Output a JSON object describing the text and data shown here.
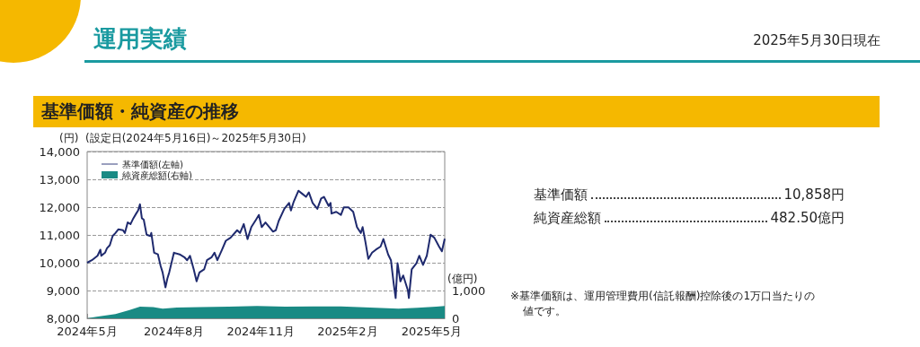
{
  "chart_data": {
    "type": "line",
    "title": "基準価額・純資産の推移",
    "subtitle": "(設定日(2024年5月16日)～2025年5月30日)",
    "ylabel": "(円)",
    "y2label": "(億円)",
    "annotations": [
      "運用実績",
      "2025年5月30日現在",
      "基準価額",
      "10,858円",
      "純資産総額",
      "482.50億円",
      "※基準価額は、運用管理費用(信託報酬)控除後の1万口当たりの値です。"
    ],
    "xlim": [
      "2024-05-16",
      "2025-05-30"
    ],
    "xticks": [
      {
        "value": "2024-05-16",
        "label": "2024年5月"
      },
      {
        "value": "2024-08-16",
        "label": "2024年8月"
      },
      {
        "value": "2024-11-16",
        "label": "2024年11月"
      },
      {
        "value": "2025-02-16",
        "label": "2025年2月"
      },
      {
        "value": "2025-05-16",
        "label": "2025年5月"
      }
    ],
    "ylim": [
      8000,
      14000
    ],
    "yticks": [
      {
        "value": 8000,
        "label": "8,000"
      },
      {
        "value": 9000,
        "label": "9,000"
      },
      {
        "value": 10000,
        "label": "10,000"
      },
      {
        "value": 11000,
        "label": "11,000"
      },
      {
        "value": 12000,
        "label": "12,000"
      },
      {
        "value": 13000,
        "label": "13,000"
      },
      {
        "value": 14000,
        "label": "14,000"
      }
    ],
    "y2lim": [
      0,
      6000
    ],
    "y2ticks": [
      {
        "value": 0,
        "label": "0"
      },
      {
        "value": 1000,
        "label": "1,000"
      }
    ],
    "grid": "y",
    "legend": "top left",
    "marker": "none",
    "line_style": "solid",
    "series": [
      {
        "name": "基準価額(左軸)",
        "color": "#1f2a6e",
        "x": [
          "2024-05-16",
          "2024-05-21",
          "2024-05-27",
          "2024-05-30",
          "2024-05-31",
          "2024-06-04",
          "2024-06-06",
          "2024-06-09",
          "2024-06-12",
          "2024-06-15",
          "2024-06-18",
          "2024-06-23",
          "2024-06-25",
          "2024-06-28",
          "2024-07-01",
          "2024-07-04",
          "2024-07-07",
          "2024-07-09",
          "2024-07-11",
          "2024-07-13",
          "2024-07-15",
          "2024-07-18",
          "2024-07-22",
          "2024-07-23",
          "2024-07-26",
          "2024-07-30",
          "2024-08-02",
          "2024-08-04",
          "2024-08-07",
          "2024-08-09",
          "2024-08-11",
          "2024-08-16",
          "2024-08-22",
          "2024-08-27",
          "2024-08-30",
          "2024-09-02",
          "2024-09-06",
          "2024-09-09",
          "2024-09-12",
          "2024-09-17",
          "2024-09-20",
          "2024-09-25",
          "2024-09-28",
          "2024-10-01",
          "2024-10-06",
          "2024-10-10",
          "2024-10-15",
          "2024-10-22",
          "2024-10-25",
          "2024-10-29",
          "2024-11-02",
          "2024-11-06",
          "2024-11-11",
          "2024-11-14",
          "2024-11-17",
          "2024-11-21",
          "2024-11-29",
          "2024-12-02",
          "2024-12-05",
          "2024-12-11",
          "2024-12-16",
          "2024-12-18",
          "2024-12-21",
          "2024-12-26",
          "2024-12-30",
          "2025-01-03",
          "2025-01-06",
          "2025-01-10",
          "2025-01-15",
          "2025-01-19",
          "2025-01-22",
          "2025-01-27",
          "2025-01-29",
          "2025-01-30",
          "2025-02-04",
          "2025-02-09",
          "2025-02-12",
          "2025-02-17",
          "2025-02-22",
          "2025-02-26",
          "2025-03-02",
          "2025-03-04",
          "2025-03-07",
          "2025-03-10",
          "2025-03-14",
          "2025-03-18",
          "2025-03-23",
          "2025-03-26",
          "2025-03-31",
          "2025-04-03",
          "2025-04-06",
          "2025-04-08",
          "2025-04-10",
          "2025-04-13",
          "2025-04-16",
          "2025-04-21",
          "2025-04-22",
          "2025-04-25",
          "2025-04-30",
          "2025-05-03",
          "2025-05-07",
          "2025-05-11",
          "2025-05-15",
          "2025-05-19",
          "2025-05-24",
          "2025-05-27",
          "2025-05-30"
        ],
        "values": [
          10000,
          10090,
          10250,
          10470,
          10250,
          10360,
          10520,
          10630,
          10960,
          11070,
          11200,
          11170,
          11070,
          11450,
          11390,
          11600,
          11770,
          11880,
          12100,
          11600,
          11550,
          11010,
          10960,
          11070,
          10360,
          10300,
          9870,
          9650,
          9110,
          9430,
          9650,
          10360,
          10300,
          10200,
          10090,
          10250,
          9760,
          9330,
          9650,
          9760,
          10090,
          10200,
          10360,
          10090,
          10470,
          10790,
          10900,
          11170,
          11070,
          11390,
          10850,
          11280,
          11550,
          11720,
          11280,
          11450,
          11120,
          11170,
          11500,
          11940,
          12150,
          11880,
          12200,
          12590,
          12480,
          12370,
          12530,
          12150,
          11940,
          12310,
          12370,
          12040,
          12150,
          11770,
          11830,
          11720,
          11990,
          11990,
          11830,
          11280,
          11070,
          11280,
          10740,
          10140,
          10360,
          10470,
          10580,
          10850,
          10300,
          10090,
          9220,
          8730,
          9980,
          9330,
          9540,
          9000,
          8730,
          9760,
          9980,
          10250,
          9920,
          10250,
          11010,
          10900,
          10580,
          10410,
          10860
        ]
      },
      {
        "name": "純資産総額(右軸)",
        "type": "area",
        "axis": "y2",
        "color": "#1a8a84",
        "x": [
          "2024-05-16",
          "2024-05-26",
          "2024-06-15",
          "2024-06-30",
          "2024-07-11",
          "2024-07-25",
          "2024-08-04",
          "2024-08-19",
          "2024-09-13",
          "2024-10-13",
          "2024-11-12",
          "2024-12-12",
          "2025-01-10",
          "2025-02-09",
          "2025-03-12",
          "2025-04-11",
          "2025-05-01",
          "2025-05-21",
          "2025-05-30"
        ],
        "values": [
          0,
          60,
          150,
          300,
          420,
          400,
          350,
          390,
          400,
          420,
          440,
          420,
          430,
          430,
          390,
          350,
          380,
          420,
          440
        ]
      }
    ]
  }
}
